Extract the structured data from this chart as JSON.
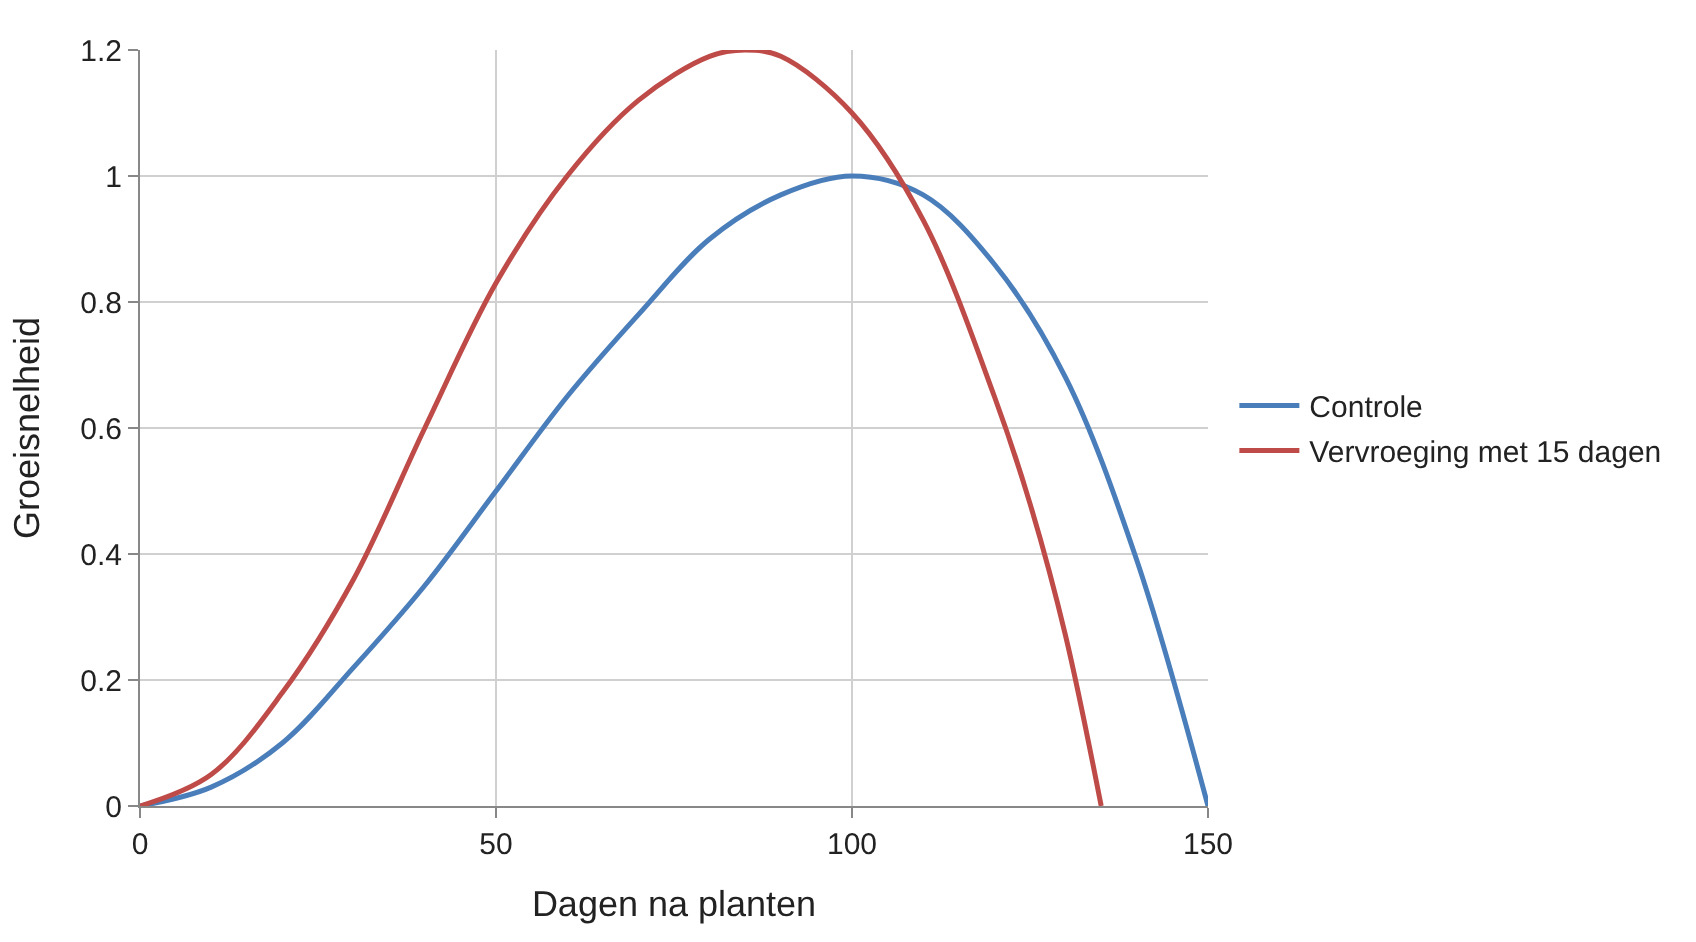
{
  "chart_data": {
    "type": "line",
    "xlabel": "Dagen na planten",
    "ylabel": "Groeisnelheid",
    "xlim": [
      0,
      150
    ],
    "xticks": [
      0,
      50,
      100,
      150
    ],
    "ylim": [
      0,
      1.2
    ],
    "yticks": [
      0,
      0.2,
      0.4,
      0.6,
      0.8,
      1,
      1.2
    ],
    "grid": true,
    "legend": "right",
    "marker": "none",
    "line_style": "solid",
    "series": [
      {
        "name": "Controle",
        "color": "#4a7ebb",
        "x": [
          0,
          10,
          20,
          30,
          40,
          50,
          60,
          70,
          80,
          90,
          100,
          110,
          120,
          130,
          140,
          150
        ],
        "values": [
          0,
          0.03,
          0.1,
          0.22,
          0.35,
          0.5,
          0.65,
          0.78,
          0.9,
          0.97,
          1,
          0.97,
          0.86,
          0.68,
          0.39,
          0
        ]
      },
      {
        "name": "Vervroeging met 15 dagen",
        "color": "#be4b48",
        "x": [
          0,
          10,
          20,
          30,
          40,
          50,
          60,
          70,
          80,
          85,
          90,
          100,
          110,
          120,
          125,
          130,
          135
        ],
        "values": [
          0,
          0.05,
          0.18,
          0.36,
          0.6,
          0.83,
          1,
          1.12,
          1.19,
          1.2,
          1.19,
          1.1,
          0.93,
          0.65,
          0.48,
          0.27,
          0
        ]
      }
    ]
  }
}
